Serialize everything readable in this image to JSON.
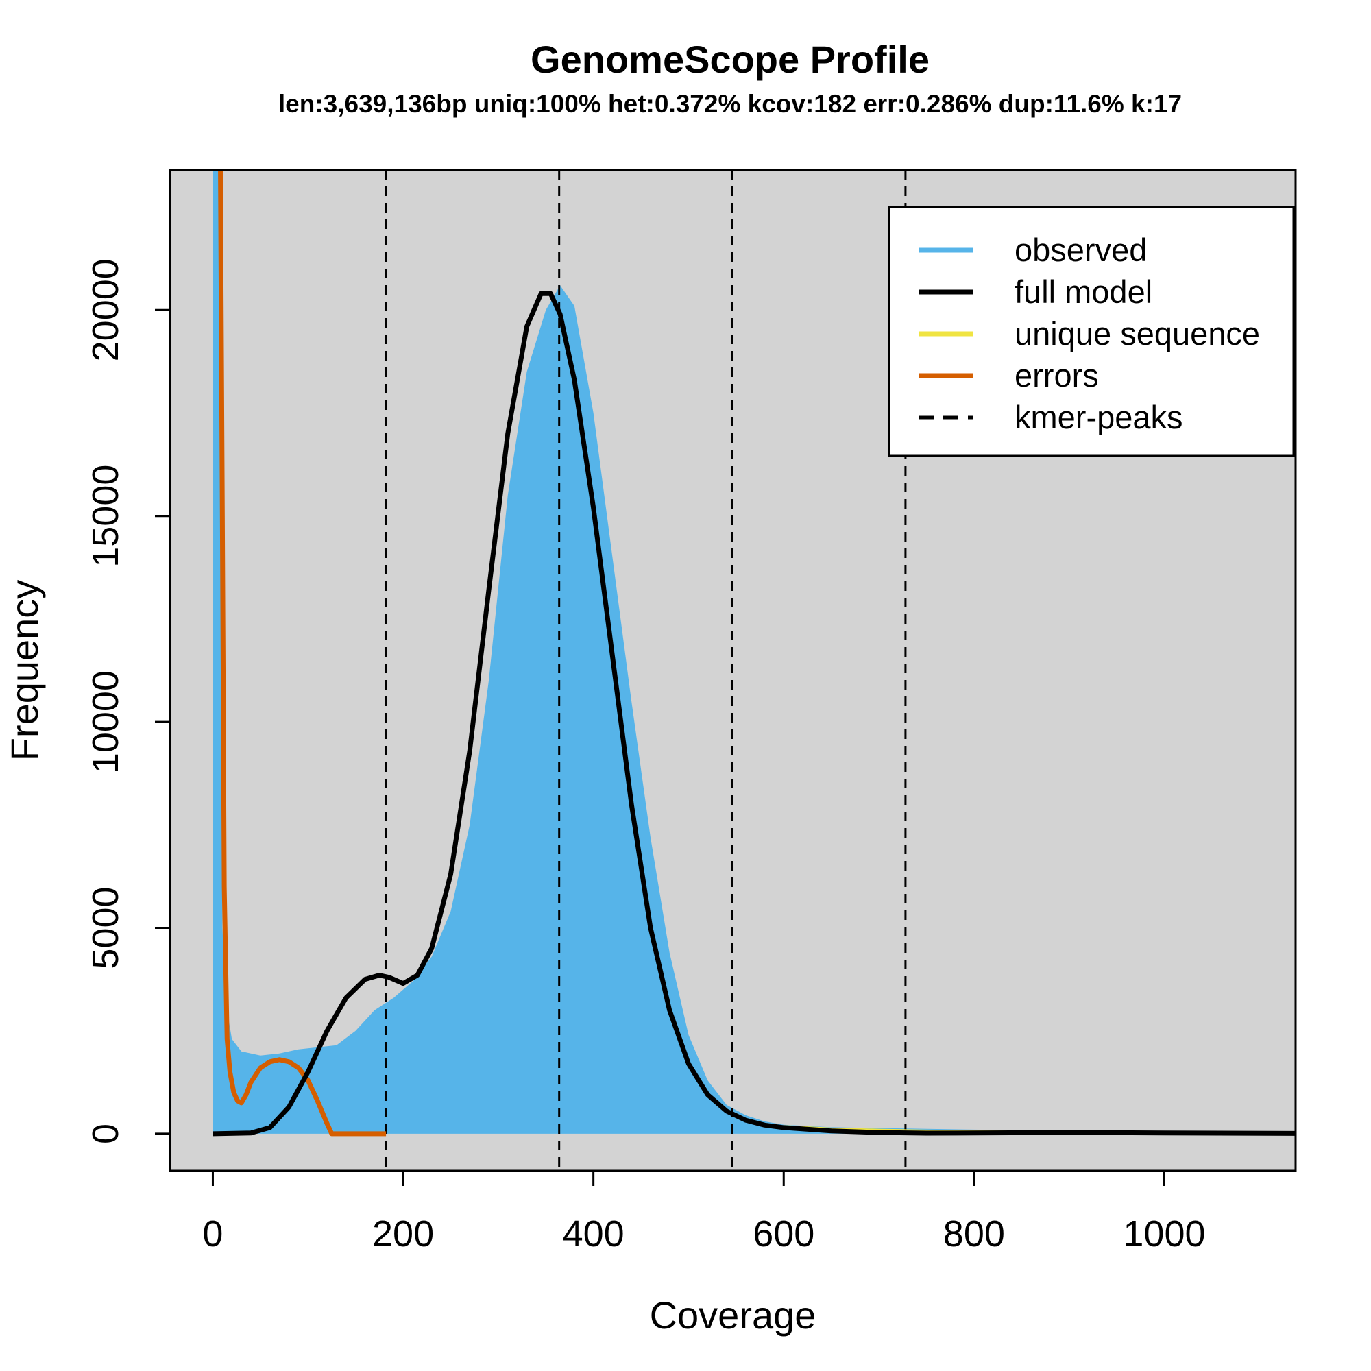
{
  "chart_data": {
    "type": "area",
    "title": "GenomeScope Profile",
    "subtitle": "len:3,639,136bp uniq:100%  het:0.372% kcov:182 err:0.286%  dup:11.6%  k:17",
    "xlabel": "Coverage",
    "ylabel": "Frequency",
    "xlim": [
      -45,
      1138
    ],
    "ylim": [
      -900,
      23400
    ],
    "x_ticks": [
      0,
      200,
      400,
      600,
      800,
      1000
    ],
    "y_ticks": [
      0,
      5000,
      10000,
      15000,
      20000
    ],
    "background": "#d3d3d3",
    "kmer_peaks": [
      182,
      364,
      546,
      728
    ],
    "legend": {
      "position": "top-right",
      "entries": [
        {
          "label": "observed",
          "color": "#56b4e9",
          "style": "solid"
        },
        {
          "label": "full model",
          "color": "#000000",
          "style": "solid"
        },
        {
          "label": "unique sequence",
          "color": "#f0e442",
          "style": "solid"
        },
        {
          "label": "errors",
          "color": "#d55e00",
          "style": "solid"
        },
        {
          "label": "kmer-peaks",
          "color": "#000000",
          "style": "dashed"
        }
      ]
    },
    "series": [
      {
        "name": "observed",
        "color": "#56b4e9",
        "x": [
          0,
          5,
          8,
          10,
          15,
          20,
          30,
          50,
          70,
          90,
          110,
          130,
          150,
          170,
          190,
          210,
          230,
          250,
          270,
          290,
          310,
          330,
          350,
          365,
          380,
          400,
          420,
          440,
          460,
          480,
          500,
          520,
          540,
          560,
          580,
          600,
          650,
          700,
          750,
          800,
          900,
          1000,
          1138
        ],
        "y": [
          23400,
          23400,
          23400,
          5000,
          3000,
          2300,
          2000,
          1900,
          1950,
          2050,
          2100,
          2150,
          2500,
          3000,
          3300,
          3700,
          4300,
          5400,
          7500,
          11000,
          15500,
          18500,
          20000,
          20600,
          20100,
          17500,
          14000,
          10500,
          7200,
          4400,
          2400,
          1300,
          700,
          450,
          300,
          220,
          160,
          140,
          120,
          100,
          70,
          50,
          30
        ]
      },
      {
        "name": "full model",
        "color": "#000000",
        "x": [
          0,
          40,
          60,
          80,
          100,
          120,
          140,
          160,
          175,
          185,
          200,
          215,
          230,
          250,
          270,
          290,
          310,
          330,
          345,
          355,
          365,
          380,
          400,
          420,
          440,
          460,
          480,
          500,
          520,
          540,
          560,
          580,
          600,
          650,
          700,
          750,
          800,
          900,
          1000,
          1138
        ],
        "y": [
          0,
          20,
          150,
          650,
          1500,
          2500,
          3300,
          3750,
          3850,
          3800,
          3650,
          3850,
          4500,
          6300,
          9300,
          13200,
          17000,
          19600,
          20400,
          20400,
          19900,
          18300,
          15200,
          11600,
          8000,
          5000,
          3000,
          1700,
          950,
          550,
          330,
          210,
          150,
          70,
          30,
          15,
          20,
          30,
          20,
          10
        ]
      },
      {
        "name": "unique sequence",
        "color": "#f0e442",
        "x": [
          600,
          650,
          700,
          750,
          800,
          900,
          1000,
          1138
        ],
        "y": [
          170,
          110,
          80,
          60,
          50,
          40,
          30,
          20
        ]
      },
      {
        "name": "errors",
        "color": "#d55e00",
        "x": [
          8,
          10,
          12,
          15,
          18,
          22,
          26,
          30,
          35,
          40,
          50,
          60,
          70,
          80,
          90,
          100,
          110,
          120,
          125,
          150,
          182
        ],
        "y": [
          23400,
          15000,
          6000,
          2300,
          1500,
          1000,
          800,
          750,
          950,
          1250,
          1600,
          1750,
          1800,
          1750,
          1600,
          1300,
          800,
          250,
          0,
          0,
          0
        ]
      }
    ]
  }
}
